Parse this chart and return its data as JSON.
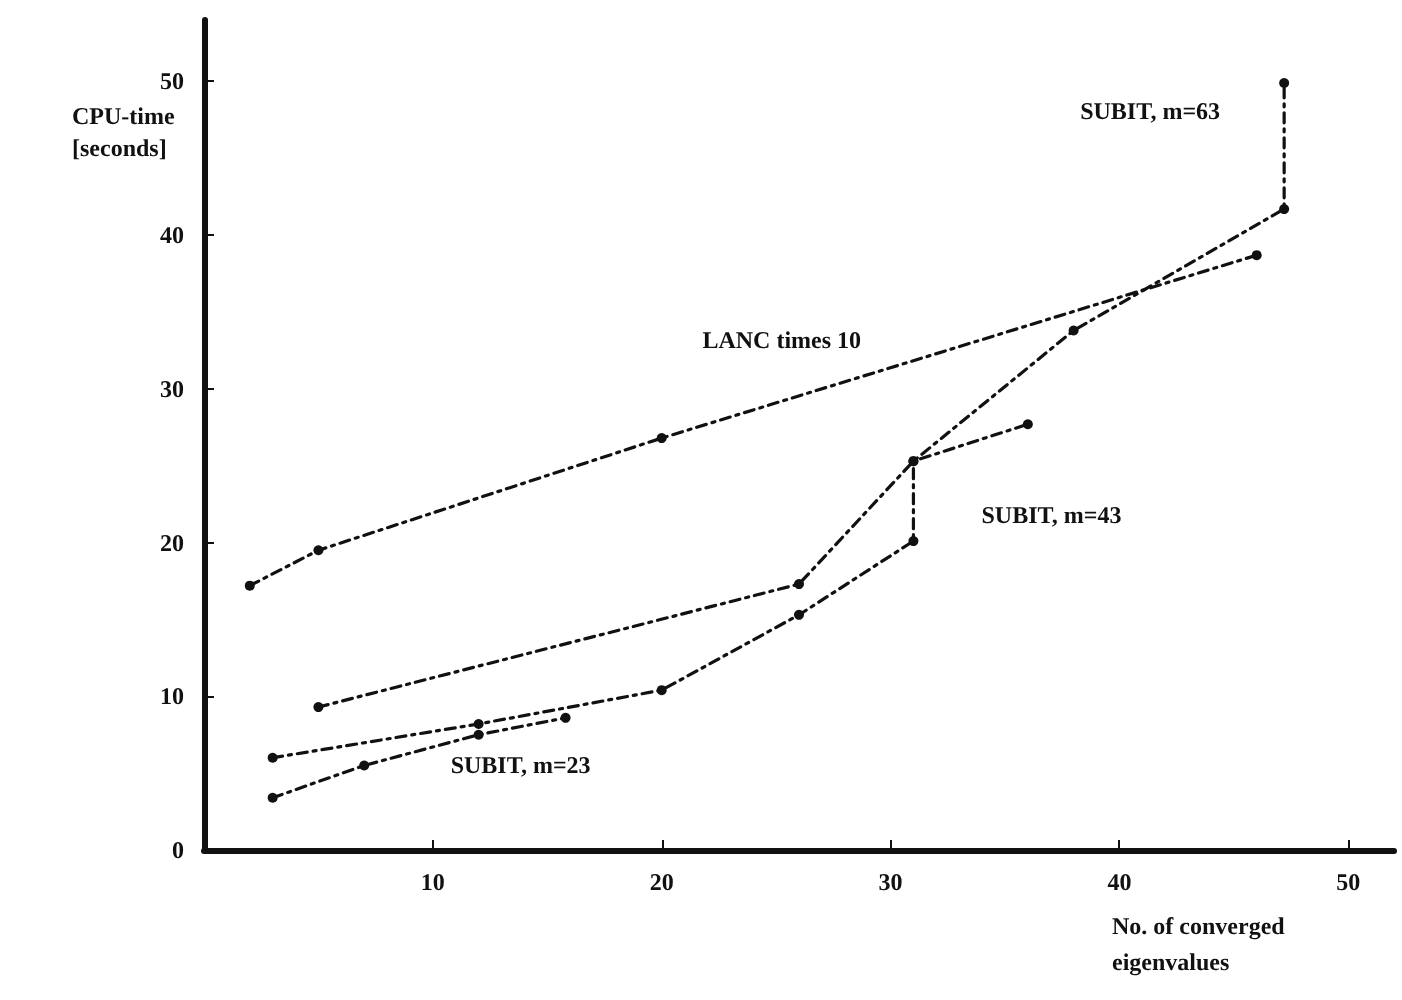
{
  "chart_data": {
    "type": "line",
    "xlabel": "No. of converged eigenvalues",
    "ylabel": "CPU-time [seconds]",
    "series": [
      {
        "name": "LANC times 10",
        "color": "#111111",
        "x": [
          2,
          5,
          20,
          46
        ],
        "values": [
          17.2,
          19.5,
          26.8,
          38.7
        ]
      },
      {
        "name": "SUBIT, m=63",
        "color": "#111111",
        "x": [
          5,
          26,
          31,
          38,
          47.2,
          47.2
        ],
        "values": [
          9.3,
          17.3,
          25.3,
          33.8,
          41.7,
          49.9
        ]
      },
      {
        "name": "SUBIT, m=43",
        "color": "#111111",
        "x": [
          3,
          12,
          20,
          26,
          31,
          31,
          36
        ],
        "values": [
          6,
          8.2,
          10.4,
          15.3,
          20.1,
          25.3,
          27.7
        ]
      },
      {
        "name": "SUBIT, m=23",
        "color": "#111111",
        "x": [
          3,
          7,
          12,
          15.8
        ],
        "values": [
          3.4,
          5.5,
          7.5,
          8.6
        ]
      }
    ],
    "xlim": [
      0,
      52
    ],
    "ylim": [
      0,
      54
    ],
    "xticks": [
      10,
      20,
      30,
      40,
      50
    ],
    "yticks": [
      0,
      10,
      20,
      30,
      40,
      50
    ],
    "grid": false,
    "legend": false,
    "marker": "circle",
    "line_style": "dashed"
  }
}
